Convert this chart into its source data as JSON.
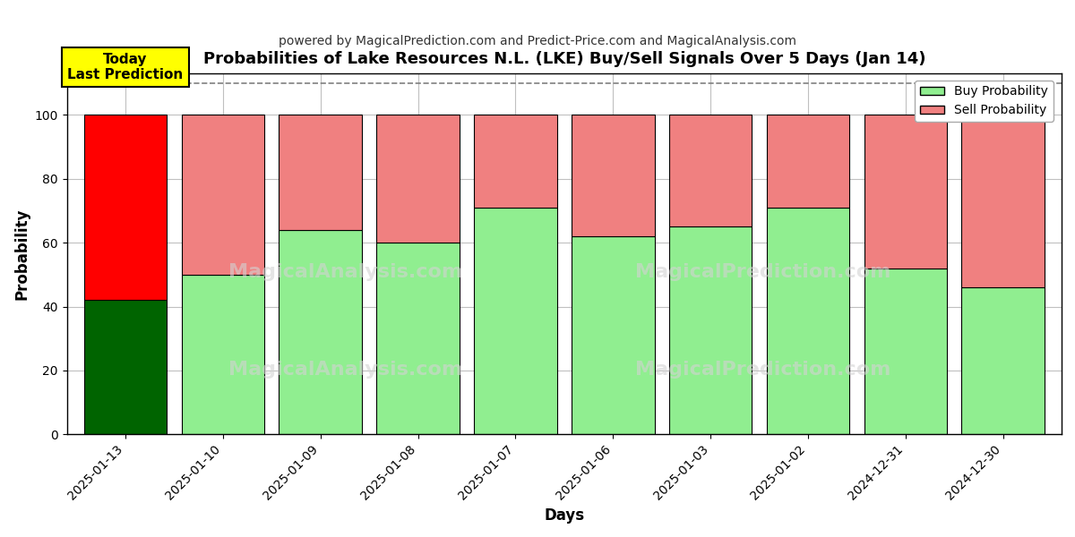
{
  "title": "Probabilities of Lake Resources N.L. (LKE) Buy/Sell Signals Over 5 Days (Jan 14)",
  "subtitle": "powered by MagicalPrediction.com and Predict-Price.com and MagicalAnalysis.com",
  "xlabel": "Days",
  "ylabel": "Probability",
  "categories": [
    "2025-01-13",
    "2025-01-10",
    "2025-01-09",
    "2025-01-08",
    "2025-01-07",
    "2025-01-06",
    "2025-01-03",
    "2025-01-02",
    "2024-12-31",
    "2024-12-30"
  ],
  "buy_values": [
    42,
    50,
    64,
    60,
    71,
    62,
    65,
    71,
    52,
    46
  ],
  "sell_values": [
    58,
    50,
    36,
    40,
    29,
    38,
    35,
    29,
    48,
    54
  ],
  "today_bar_buy_color": "#006400",
  "today_bar_sell_color": "#ff0000",
  "other_bar_buy_color": "#90EE90",
  "other_bar_sell_color": "#f08080",
  "bar_edge_color": "#000000",
  "bar_edge_width": 0.8,
  "ylim": [
    0,
    113
  ],
  "yticks": [
    0,
    20,
    40,
    60,
    80,
    100
  ],
  "dashed_line_y": 110,
  "dashed_line_color": "#808080",
  "legend_buy_label": "Buy Probability",
  "legend_sell_label": "Sell Probability",
  "today_annotation": "Today\nLast Prediction",
  "grid_color": "#c0c0c0",
  "background_color": "#ffffff",
  "bar_width": 0.85
}
